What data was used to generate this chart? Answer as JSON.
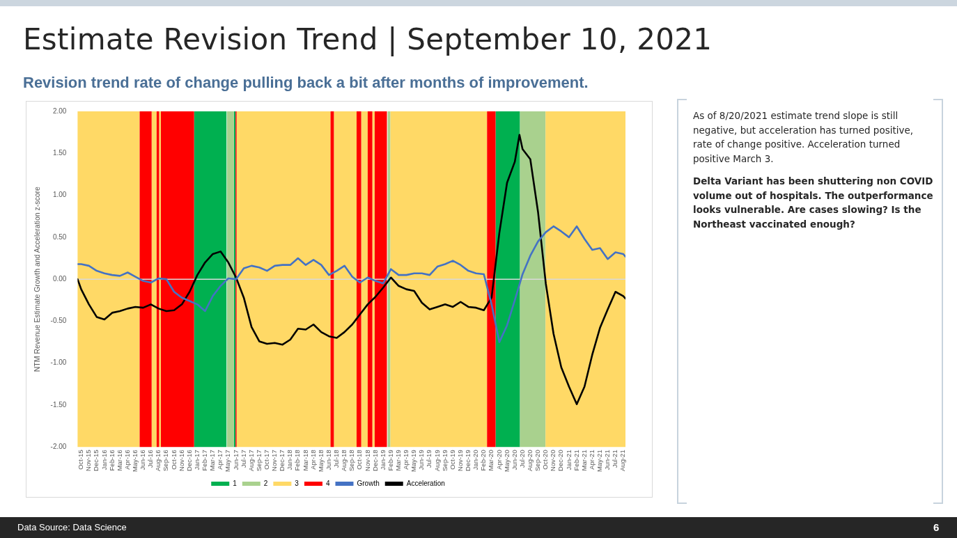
{
  "chart_data": {
    "type": "line",
    "title": "Estimate Revision Trend | September 10, 2021",
    "subtitle": "Revision trend rate of change pulling back a bit after months of improvement.",
    "ylabel": "NTM Revenue Estimate Growth and Acceleration z-score",
    "annotations": [
      "As of 8/20/2021 estimate trend slope is still negative, but acceleration has turned positive, rate of change positive. Acceleration turned positive March 3.",
      "Delta Variant has been shuttering non COVID volume out of hospitals. The outperformance looks vulnerable.  Are cases slowing?  Is the Northeast vaccinated enough?",
      "Data Source: Data Science",
      "6"
    ],
    "x": [
      "2015-09-17",
      "2015-10",
      "2015-11",
      "2015-12",
      "2016-01",
      "2016-02",
      "2016-03",
      "2016-04",
      "2016-05",
      "2016-06",
      "2016-07",
      "2016-08",
      "2016-09",
      "2016-10",
      "2016-11",
      "2016-12",
      "2017-01",
      "2017-02",
      "2017-03",
      "2017-04",
      "2017-05",
      "2017-06",
      "2017-07",
      "2017-08",
      "2017-09",
      "2017-10",
      "2017-11",
      "2017-12",
      "2018-01",
      "2018-02",
      "2018-03",
      "2018-04",
      "2018-05",
      "2018-06",
      "2018-07",
      "2018-08",
      "2018-09",
      "2018-10",
      "2018-11",
      "2018-12",
      "2019-01",
      "2019-02",
      "2019-03",
      "2019-04",
      "2019-05",
      "2019-06",
      "2019-07",
      "2019-08",
      "2019-09",
      "2019-10",
      "2019-11",
      "2019-12",
      "2020-01",
      "2020-02",
      "2020-03",
      "2020-04",
      "2020-05",
      "2020-06",
      "2020-07",
      "2020-08",
      "2020-09",
      "2020-10",
      "2020-11",
      "2020-12",
      "2021-01",
      "2021-02",
      "2021-03",
      "2021-04",
      "2021-05",
      "2021-06",
      "2021-07",
      "2021-08",
      "2021-08-10"
    ],
    "series": [
      {
        "name": "Growth",
        "color": "#4472c4",
        "values": [
          0.18,
          0.18,
          0.16,
          0.1,
          0.07,
          0.05,
          0.04,
          0.08,
          0.03,
          -0.02,
          -0.04,
          0.01,
          0.0,
          -0.15,
          -0.22,
          -0.26,
          -0.3,
          -0.38,
          -0.2,
          -0.08,
          0.01,
          0.0,
          0.13,
          0.16,
          0.14,
          0.1,
          0.16,
          0.17,
          0.17,
          0.25,
          0.17,
          0.23,
          0.17,
          0.05,
          0.1,
          0.16,
          0.03,
          -0.04,
          0.02,
          -0.02,
          -0.05,
          0.12,
          0.05,
          0.05,
          0.07,
          0.07,
          0.05,
          0.15,
          0.18,
          0.22,
          0.17,
          0.1,
          0.07,
          0.06,
          -0.3,
          -0.75,
          -0.55,
          -0.25,
          0.06,
          0.28,
          0.45,
          0.56,
          0.63,
          0.57,
          0.5,
          0.63,
          0.48,
          0.35,
          0.37,
          0.24,
          0.32,
          0.3,
          0.27
        ]
      },
      {
        "name": "Acceleration",
        "color": "#000000",
        "x": [
          "2015-09-17",
          "2015-10",
          "2015-11",
          "2015-12",
          "2016-01",
          "2016-02",
          "2016-03",
          "2016-04",
          "2016-05",
          "2016-06",
          "2016-07",
          "2016-08",
          "2016-09",
          "2016-10",
          "2016-11",
          "2016-12",
          "2017-01",
          "2017-02",
          "2017-03",
          "2017-04",
          "2017-05",
          "2017-06",
          "2017-07",
          "2017-08",
          "2017-09",
          "2017-10",
          "2017-11",
          "2017-12",
          "2018-01",
          "2018-02",
          "2018-03",
          "2018-04",
          "2018-05",
          "2018-06",
          "2018-07",
          "2018-08",
          "2018-09",
          "2018-10",
          "2018-11",
          "2018-12",
          "2019-01",
          "2019-02",
          "2019-03",
          "2019-04",
          "2019-05",
          "2019-06",
          "2019-07",
          "2019-08",
          "2019-09",
          "2019-10",
          "2019-11",
          "2019-12",
          "2020-01",
          "2020-02",
          "2020-03",
          "2020-04",
          "2020-05",
          "2020-06",
          "2020-06-19",
          "2020-07",
          "2020-08",
          "2020-09",
          "2020-10",
          "2020-11",
          "2020-12",
          "2021-01",
          "2021-02",
          "2021-03",
          "2021-04",
          "2021-05",
          "2021-06",
          "2021-07",
          "2021-08",
          "2021-08-10"
        ],
        "values": [
          0.0,
          -0.12,
          -0.3,
          -0.45,
          -0.48,
          -0.4,
          -0.38,
          -0.35,
          -0.33,
          -0.34,
          -0.3,
          -0.35,
          -0.38,
          -0.37,
          -0.3,
          -0.15,
          0.05,
          0.2,
          0.3,
          0.33,
          0.2,
          0.02,
          -0.22,
          -0.57,
          -0.74,
          -0.77,
          -0.76,
          -0.78,
          -0.72,
          -0.59,
          -0.6,
          -0.54,
          -0.63,
          -0.68,
          -0.7,
          -0.63,
          -0.54,
          -0.42,
          -0.3,
          -0.21,
          -0.1,
          0.02,
          -0.08,
          -0.12,
          -0.14,
          -0.28,
          -0.36,
          -0.33,
          -0.3,
          -0.33,
          -0.27,
          -0.33,
          -0.34,
          -0.37,
          -0.22,
          0.55,
          1.15,
          1.4,
          1.72,
          1.55,
          1.43,
          0.8,
          -0.05,
          -0.65,
          -1.05,
          -1.28,
          -1.49,
          -1.28,
          -0.9,
          -0.58,
          -0.36,
          -0.15,
          -0.2,
          -0.23
        ]
      }
    ],
    "bands": [
      {
        "axis": "x",
        "from": "2016-12-19",
        "to": "2017-04-24",
        "label": "1",
        "color": "#00b050"
      },
      {
        "axis": "x",
        "from": "2017-05-23",
        "to": "2017-05-30",
        "color": "#00b050"
      },
      {
        "axis": "x",
        "from": "2020-03-17",
        "to": "2020-06-21",
        "color": "#00b050"
      },
      {
        "axis": "x",
        "from": "2017-04-26",
        "to": "2017-05-23",
        "label": "2",
        "color": "#a9d18e"
      },
      {
        "axis": "x",
        "from": "2019-01-19",
        "to": "2019-01-30",
        "color": "#a9d18e"
      },
      {
        "axis": "x",
        "from": "2020-06-21",
        "to": "2020-09-30",
        "color": "#a9d18e"
      },
      {
        "axis": "x",
        "from": "2015-09-17",
        "to": "2016-05-18",
        "label": "3",
        "color": "#ffd966"
      },
      {
        "axis": "x",
        "from": "2016-07-04",
        "to": "2016-07-24",
        "color": "#ffd966"
      },
      {
        "axis": "x",
        "from": "2016-08-03",
        "to": "2016-08-10",
        "color": "#ffd966"
      },
      {
        "axis": "x",
        "from": "2017-06-03",
        "to": "2018-06-07",
        "color": "#ffd966"
      },
      {
        "axis": "x",
        "from": "2018-06-20",
        "to": "2018-09-18",
        "color": "#ffd966"
      },
      {
        "axis": "x",
        "from": "2018-10-06",
        "to": "2018-11-01",
        "color": "#ffd966"
      },
      {
        "axis": "x",
        "from": "2018-11-19",
        "to": "2018-11-28",
        "color": "#ffd966"
      },
      {
        "axis": "x",
        "from": "2019-01-30",
        "to": "2020-02-13",
        "color": "#ffd966"
      },
      {
        "axis": "x",
        "from": "2020-09-30",
        "to": "2021-08-10",
        "color": "#ffd966"
      },
      {
        "axis": "x",
        "from": "2016-05-18",
        "to": "2016-07-04",
        "label": "4",
        "color": "#ff0000"
      },
      {
        "axis": "x",
        "from": "2016-07-24",
        "to": "2016-08-03",
        "color": "#ff0000"
      },
      {
        "axis": "x",
        "from": "2016-08-10",
        "to": "2016-12-19",
        "color": "#ff0000"
      },
      {
        "axis": "x",
        "from": "2017-05-30",
        "to": "2017-06-03",
        "color": "#ff0000"
      },
      {
        "axis": "x",
        "from": "2018-06-07",
        "to": "2018-06-20",
        "color": "#ff0000"
      },
      {
        "axis": "x",
        "from": "2018-09-18",
        "to": "2018-10-06",
        "color": "#ff0000"
      },
      {
        "axis": "x",
        "from": "2018-11-01",
        "to": "2018-11-19",
        "color": "#ff0000"
      },
      {
        "axis": "x",
        "from": "2018-11-28",
        "to": "2019-01-16",
        "color": "#ff0000"
      },
      {
        "axis": "x",
        "from": "2020-02-13",
        "to": "2020-03-17",
        "color": "#ff0000"
      }
    ],
    "ref_lines": [
      {
        "axis": "y",
        "value": 0,
        "color": "#d9d9d9"
      }
    ],
    "xlim": [
      "2015-09-17",
      "2021-08-10"
    ],
    "xticks": [
      {
        "value": "2015-10",
        "label": "Oct-15"
      },
      {
        "value": "2015-11",
        "label": "Nov-15"
      },
      {
        "value": "2015-12",
        "label": "Dec-15"
      },
      {
        "value": "2016-01",
        "label": "Jan-16"
      },
      {
        "value": "2016-02",
        "label": "Feb-16"
      },
      {
        "value": "2016-03",
        "label": "Mar-16"
      },
      {
        "value": "2016-04",
        "label": "Apr-16"
      },
      {
        "value": "2016-05",
        "label": "May-16"
      },
      {
        "value": "2016-06",
        "label": "Jun-16"
      },
      {
        "value": "2016-07",
        "label": "Jul-16"
      },
      {
        "value": "2016-08",
        "label": "Aug-16"
      },
      {
        "value": "2016-09",
        "label": "Sep-16"
      },
      {
        "value": "2016-10",
        "label": "Oct-16"
      },
      {
        "value": "2016-11",
        "label": "Nov-16"
      },
      {
        "value": "2016-12",
        "label": "Dec-16"
      },
      {
        "value": "2017-01",
        "label": "Jan-17"
      },
      {
        "value": "2017-02",
        "label": "Feb-17"
      },
      {
        "value": "2017-03",
        "label": "Mar-17"
      },
      {
        "value": "2017-04",
        "label": "Apr-17"
      },
      {
        "value": "2017-05",
        "label": "May-17"
      },
      {
        "value": "2017-06",
        "label": "Jun-17"
      },
      {
        "value": "2017-07",
        "label": "Jul-17"
      },
      {
        "value": "2017-08",
        "label": "Aug-17"
      },
      {
        "value": "2017-09",
        "label": "Sep-17"
      },
      {
        "value": "2017-10",
        "label": "Oct-17"
      },
      {
        "value": "2017-11",
        "label": "Nov-17"
      },
      {
        "value": "2017-12",
        "label": "Dec-17"
      },
      {
        "value": "2018-01",
        "label": "Jan-18"
      },
      {
        "value": "2018-02",
        "label": "Feb-18"
      },
      {
        "value": "2018-03",
        "label": "Mar-18"
      },
      {
        "value": "2018-04",
        "label": "Apr-18"
      },
      {
        "value": "2018-05",
        "label": "May-18"
      },
      {
        "value": "2018-06",
        "label": "Jun-18"
      },
      {
        "value": "2018-07",
        "label": "Jul-18"
      },
      {
        "value": "2018-08",
        "label": "Aug-18"
      },
      {
        "value": "2018-09",
        "label": "Sep-18"
      },
      {
        "value": "2018-10",
        "label": "Oct-18"
      },
      {
        "value": "2018-11",
        "label": "Nov-18"
      },
      {
        "value": "2018-12",
        "label": "Dec-18"
      },
      {
        "value": "2019-01",
        "label": "Jan-19"
      },
      {
        "value": "2019-02",
        "label": "Feb-19"
      },
      {
        "value": "2019-03",
        "label": "Mar-19"
      },
      {
        "value": "2019-04",
        "label": "Apr-19"
      },
      {
        "value": "2019-05",
        "label": "May-19"
      },
      {
        "value": "2019-06",
        "label": "Jun-19"
      },
      {
        "value": "2019-07",
        "label": "Jul-19"
      },
      {
        "value": "2019-08",
        "label": "Aug-19"
      },
      {
        "value": "2019-09",
        "label": "Sep-19"
      },
      {
        "value": "2019-10",
        "label": "Oct-19"
      },
      {
        "value": "2019-11",
        "label": "Nov-19"
      },
      {
        "value": "2019-12",
        "label": "Dec-19"
      },
      {
        "value": "2020-01",
        "label": "Jan-20"
      },
      {
        "value": "2020-02",
        "label": "Feb-20"
      },
      {
        "value": "2020-03",
        "label": "Mar-20"
      },
      {
        "value": "2020-04",
        "label": "Apr-20"
      },
      {
        "value": "2020-05",
        "label": "May-20"
      },
      {
        "value": "2020-06",
        "label": "Jun-20"
      },
      {
        "value": "2020-07",
        "label": "Jul-20"
      },
      {
        "value": "2020-08",
        "label": "Aug-20"
      },
      {
        "value": "2020-09",
        "label": "Sep-20"
      },
      {
        "value": "2020-10",
        "label": "Oct-20"
      },
      {
        "value": "2020-11",
        "label": "Nov-20"
      },
      {
        "value": "2020-12",
        "label": "Dec-20"
      },
      {
        "value": "2021-01",
        "label": "Jan-21"
      },
      {
        "value": "2021-02",
        "label": "Feb-21"
      },
      {
        "value": "2021-03",
        "label": "Mar-21"
      },
      {
        "value": "2021-04",
        "label": "Apr-21"
      },
      {
        "value": "2021-05",
        "label": "May-21"
      },
      {
        "value": "2021-06",
        "label": "Jun-21"
      },
      {
        "value": "2021-07",
        "label": "Jul-21"
      },
      {
        "value": "2021-08",
        "label": "Aug-21"
      }
    ],
    "ylim": [
      -2,
      2
    ],
    "yticks": [
      {
        "value": -2,
        "label": "-2.00"
      },
      {
        "value": -1.5,
        "label": "-1.50"
      },
      {
        "value": -1,
        "label": "-1.00"
      },
      {
        "value": -0.5,
        "label": "-0.50"
      },
      {
        "value": 0,
        "label": "0.00"
      },
      {
        "value": 0.5,
        "label": "0.50"
      },
      {
        "value": 1,
        "label": "1.00"
      },
      {
        "value": 1.5,
        "label": "1.50"
      },
      {
        "value": 2,
        "label": "2.00"
      }
    ],
    "legend": "bottom"
  }
}
